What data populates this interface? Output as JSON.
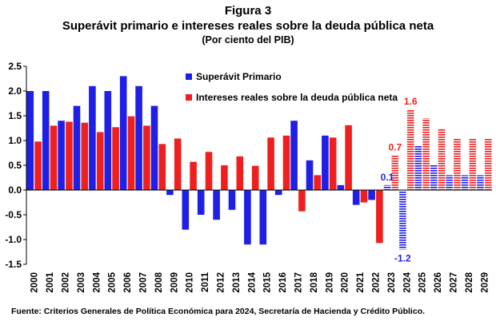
{
  "figure_label": "Figura 3",
  "title": "Superávit primario e intereses reales  sobre la deuda pública neta",
  "subtitle": "(Por ciento del PIB)",
  "source": "Fuente: Criterios Generales de Política Económica para 2024, Secretaría de Hacienda y Crédito Público.",
  "colors": {
    "primary_surplus": "#1f1fe6",
    "interest": "#ef1f1f"
  },
  "chart_data": {
    "type": "bar",
    "categories": [
      "2000",
      "2001",
      "2002",
      "2003",
      "2004",
      "2005",
      "2006",
      "2007",
      "2008",
      "2009",
      "2010",
      "2011",
      "2012",
      "2013",
      "2014",
      "2015",
      "2016",
      "2017",
      "2018",
      "2019",
      "2020",
      "2021",
      "2022",
      "2023",
      "2024",
      "2025",
      "2026",
      "2027",
      "2028",
      "2029"
    ],
    "projection_start_index": 23,
    "ylim": [
      -1.5,
      2.5
    ],
    "yticks": [
      "2.5",
      "2.0",
      "1.5",
      "1.0",
      "0.5",
      "0.0",
      "-0.5",
      "-1.0",
      "-1.5"
    ],
    "ytick_values": [
      2.5,
      2.0,
      1.5,
      1.0,
      0.5,
      0.0,
      -0.5,
      -1.0,
      -1.5
    ],
    "legend_position": "top-center",
    "series": [
      {
        "name": "Superávit Primario",
        "values": [
          2.0,
          2.0,
          1.4,
          1.7,
          2.1,
          2.0,
          2.3,
          2.1,
          1.7,
          -0.1,
          -0.8,
          -0.5,
          -0.6,
          -0.4,
          -1.1,
          -1.1,
          -0.1,
          1.4,
          0.6,
          1.1,
          0.1,
          -0.3,
          -0.2,
          0.1,
          -1.2,
          0.9,
          0.5,
          0.3,
          0.3,
          0.3
        ]
      },
      {
        "name": "Intereses reales sobre la deuda pública neta",
        "values": [
          0.98,
          1.3,
          1.38,
          1.36,
          1.17,
          1.27,
          1.49,
          1.3,
          0.93,
          1.04,
          0.57,
          0.77,
          0.5,
          0.68,
          0.49,
          1.06,
          1.1,
          -0.43,
          0.3,
          1.06,
          1.31,
          -0.25,
          -1.07,
          0.7,
          1.63,
          1.45,
          1.25,
          1.05,
          1.05,
          1.05
        ]
      }
    ],
    "data_labels": [
      {
        "text": "0.1",
        "series": 0,
        "index": 23
      },
      {
        "text": "-1.2",
        "series": 0,
        "index": 24
      },
      {
        "text": "0.7",
        "series": 1,
        "index": 23
      },
      {
        "text": "1.6",
        "series": 1,
        "index": 24
      }
    ]
  }
}
